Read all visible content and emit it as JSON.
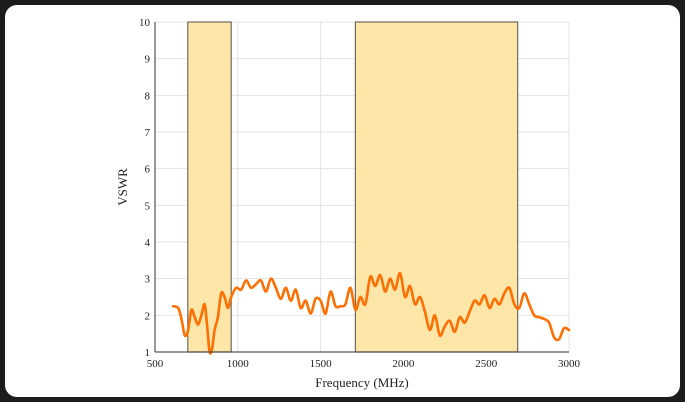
{
  "chart_data": {
    "type": "line",
    "title": "",
    "xlabel": "Frequency (MHz)",
    "ylabel": "VSWR",
    "xlim": [
      500,
      3000
    ],
    "ylim": [
      1,
      10
    ],
    "xticks": [
      500,
      1000,
      1500,
      2000,
      2500,
      3000
    ],
    "yticks": [
      1,
      2,
      3,
      4,
      5,
      6,
      7,
      8,
      9,
      10
    ],
    "grid": true,
    "colors": {
      "line": "#ff7000",
      "band_fill": "#fde6a8",
      "band_stroke": "#6e6a60",
      "grid": "#e3e3e3"
    },
    "bands": [
      {
        "x0": 698,
        "x1": 960
      },
      {
        "x0": 1710,
        "x1": 2690
      }
    ],
    "series": [
      {
        "x": [
          610,
          640,
          660,
          680,
          700,
          720,
          740,
          760,
          780,
          800,
          815,
          830,
          845,
          860,
          880,
          900,
          920,
          940,
          960,
          990,
          1020,
          1050,
          1080,
          1110,
          1140,
          1170,
          1200,
          1230,
          1260,
          1290,
          1320,
          1350,
          1380,
          1410,
          1440,
          1470,
          1500,
          1530,
          1560,
          1590,
          1620,
          1650,
          1680,
          1710,
          1740,
          1770,
          1800,
          1830,
          1860,
          1890,
          1920,
          1950,
          1980,
          2010,
          2040,
          2070,
          2100,
          2130,
          2160,
          2190,
          2220,
          2250,
          2280,
          2310,
          2340,
          2370,
          2400,
          2430,
          2460,
          2490,
          2520,
          2550,
          2580,
          2610,
          2640,
          2670,
          2700,
          2730,
          2760,
          2790,
          2820,
          2850,
          2880,
          2910,
          2940,
          2970,
          3000
        ],
        "y": [
          2.25,
          2.2,
          1.9,
          1.45,
          1.6,
          2.15,
          1.95,
          1.75,
          2.0,
          2.3,
          1.7,
          1.0,
          1.1,
          1.6,
          1.95,
          2.6,
          2.5,
          2.2,
          2.5,
          2.75,
          2.7,
          2.95,
          2.75,
          2.85,
          2.95,
          2.65,
          3.0,
          2.75,
          2.45,
          2.75,
          2.4,
          2.7,
          2.2,
          2.4,
          2.05,
          2.45,
          2.4,
          2.05,
          2.65,
          2.25,
          2.25,
          2.3,
          2.75,
          2.15,
          2.5,
          2.3,
          3.05,
          2.8,
          3.1,
          2.65,
          3.0,
          2.7,
          3.15,
          2.5,
          2.8,
          2.3,
          2.5,
          2.1,
          1.6,
          2.0,
          1.45,
          1.7,
          1.85,
          1.55,
          1.95,
          1.8,
          2.1,
          2.4,
          2.3,
          2.55,
          2.2,
          2.45,
          2.3,
          2.6,
          2.75,
          2.3,
          2.2,
          2.6,
          2.3,
          2.0,
          1.95,
          1.9,
          1.8,
          1.4,
          1.35,
          1.65,
          1.6
        ]
      }
    ]
  }
}
